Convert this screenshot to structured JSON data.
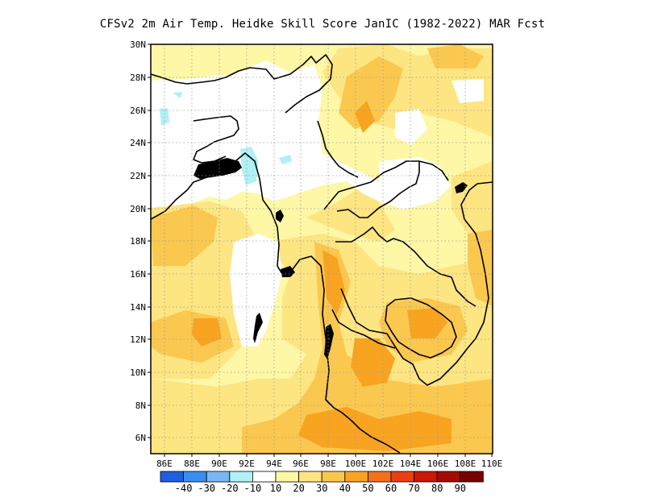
{
  "title": "CFSv2  2m Air Temp. Heidke Skill Score JanIC (1982-2022) MAR Fcst",
  "map": {
    "lon_range": [
      85,
      110
    ],
    "lat_range": [
      5,
      30
    ],
    "lat_ticks": [
      "30N",
      "28N",
      "26N",
      "24N",
      "22N",
      "20N",
      "18N",
      "16N",
      "14N",
      "12N",
      "10N",
      "8N",
      "6N"
    ],
    "lon_ticks": [
      "86E",
      "88E",
      "90E",
      "92E",
      "94E",
      "96E",
      "98E",
      "100E",
      "102E",
      "104E",
      "106E",
      "108E",
      "110E"
    ],
    "grid": "dotted"
  },
  "colorbar": {
    "labels": [
      "-40",
      "-30",
      "-20",
      "-10",
      "10",
      "20",
      "30",
      "40",
      "50",
      "60",
      "70",
      "80",
      "90"
    ],
    "colors": [
      "#1c5fe0",
      "#3a8ef0",
      "#7ab6f2",
      "#b0f0f6",
      "#ffffff",
      "#fdf7a6",
      "#fde582",
      "#fbc84f",
      "#f8a421",
      "#f2721a",
      "#ea3f14",
      "#cc1606",
      "#a60a04"
    ]
  }
}
